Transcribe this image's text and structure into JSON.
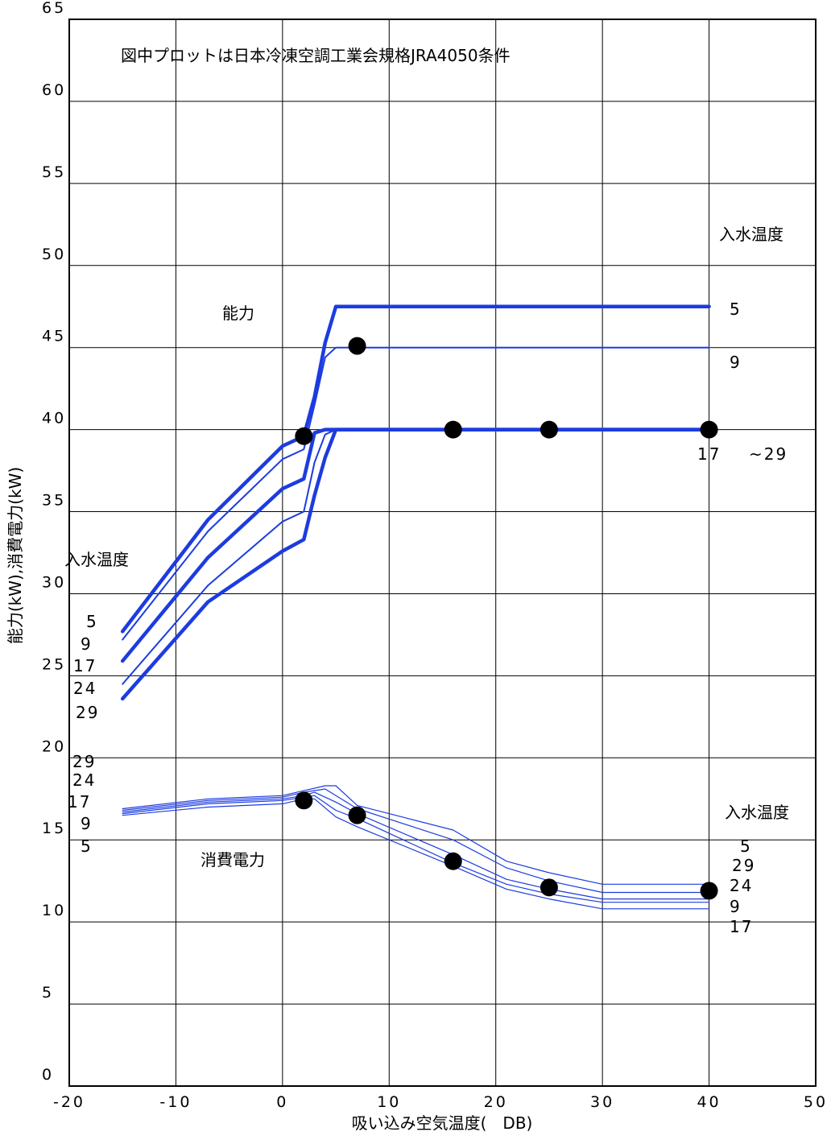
{
  "chart_data": {
    "type": "line",
    "title": "図中プロットは日本冷凍空調工業会規格JRA4050条件",
    "xlabel": "吸い込み空気温度(　DB)",
    "ylabel": "能力(kW),消費電力(kW)",
    "xlim": [
      -20,
      50
    ],
    "ylim": [
      0,
      65
    ],
    "x_ticks": [
      -20,
      -10,
      0,
      10,
      20,
      30,
      40,
      50
    ],
    "y_ticks": [
      0,
      5,
      10,
      15,
      20,
      25,
      30,
      35,
      40,
      45,
      50,
      55,
      60,
      65
    ],
    "grid": true,
    "colors": {
      "line": "#1c3ce0",
      "marker": "#000000",
      "grid": "#000000"
    },
    "capacity_series": [
      {
        "inlet_temp": "5",
        "bold": true,
        "points": [
          [
            -15,
            27.7
          ],
          [
            -7,
            34.5
          ],
          [
            0,
            39.0
          ],
          [
            2,
            39.6
          ],
          [
            3,
            42.0
          ],
          [
            4,
            45.3
          ],
          [
            5,
            47.5
          ],
          [
            40,
            47.5
          ]
        ]
      },
      {
        "inlet_temp": "9",
        "bold": false,
        "points": [
          [
            -15,
            27.2
          ],
          [
            -7,
            33.8
          ],
          [
            0,
            38.2
          ],
          [
            2,
            38.8
          ],
          [
            3,
            41.5
          ],
          [
            4,
            44.4
          ],
          [
            5,
            45.0
          ],
          [
            40,
            45.0
          ]
        ]
      },
      {
        "inlet_temp": "17",
        "bold": true,
        "points": [
          [
            -15,
            25.9
          ],
          [
            -7,
            32.2
          ],
          [
            0,
            36.4
          ],
          [
            2,
            37.0
          ],
          [
            3,
            39.8
          ],
          [
            4,
            40.0
          ],
          [
            40,
            40.0
          ]
        ]
      },
      {
        "inlet_temp": "24",
        "bold": false,
        "points": [
          [
            -15,
            24.5
          ],
          [
            -7,
            30.5
          ],
          [
            0,
            34.4
          ],
          [
            2,
            35.0
          ],
          [
            3,
            38.0
          ],
          [
            4,
            39.7
          ],
          [
            5,
            40.0
          ],
          [
            40,
            40.0
          ]
        ]
      },
      {
        "inlet_temp": "29",
        "bold": true,
        "points": [
          [
            -15,
            23.6
          ],
          [
            -7,
            29.5
          ],
          [
            0,
            32.6
          ],
          [
            2,
            33.3
          ],
          [
            3,
            36.0
          ],
          [
            4,
            38.3
          ],
          [
            5,
            40.0
          ],
          [
            40,
            40.0
          ]
        ]
      }
    ],
    "power_series": [
      {
        "inlet_temp": "29",
        "points": [
          [
            -15,
            16.9
          ],
          [
            -7,
            17.5
          ],
          [
            0,
            17.7
          ],
          [
            2,
            18.0
          ],
          [
            4,
            18.3
          ],
          [
            5,
            18.3
          ],
          [
            7,
            17.1
          ],
          [
            16,
            15.6
          ],
          [
            21,
            13.7
          ],
          [
            25,
            13.0
          ],
          [
            30,
            12.3
          ],
          [
            40,
            12.3
          ]
        ]
      },
      {
        "inlet_temp": "24",
        "points": [
          [
            -15,
            16.8
          ],
          [
            -7,
            17.4
          ],
          [
            0,
            17.6
          ],
          [
            2,
            17.9
          ],
          [
            4,
            18.1
          ],
          [
            7,
            16.9
          ],
          [
            16,
            15.0
          ],
          [
            21,
            13.3
          ],
          [
            25,
            12.5
          ],
          [
            30,
            11.8
          ],
          [
            40,
            11.8
          ]
        ]
      },
      {
        "inlet_temp": "17",
        "points": [
          [
            -15,
            16.7
          ],
          [
            -7,
            17.3
          ],
          [
            0,
            17.5
          ],
          [
            2,
            17.7
          ],
          [
            3,
            17.9
          ],
          [
            5,
            17.3
          ],
          [
            7,
            16.6
          ],
          [
            16,
            14.1
          ],
          [
            21,
            12.6
          ],
          [
            25,
            12.0
          ],
          [
            30,
            11.4
          ],
          [
            40,
            11.4
          ]
        ]
      },
      {
        "inlet_temp": "9",
        "points": [
          [
            -15,
            16.6
          ],
          [
            -7,
            17.2
          ],
          [
            0,
            17.4
          ],
          [
            2,
            17.6
          ],
          [
            3,
            17.7
          ],
          [
            5,
            16.8
          ],
          [
            7,
            16.3
          ],
          [
            16,
            13.6
          ],
          [
            21,
            12.3
          ],
          [
            25,
            11.7
          ],
          [
            30,
            11.2
          ],
          [
            40,
            11.2
          ]
        ]
      },
      {
        "inlet_temp": "5",
        "points": [
          [
            -15,
            16.5
          ],
          [
            -7,
            17.0
          ],
          [
            0,
            17.2
          ],
          [
            2,
            17.5
          ],
          [
            3,
            17.5
          ],
          [
            5,
            16.4
          ],
          [
            7,
            15.8
          ],
          [
            16,
            13.4
          ],
          [
            21,
            12.0
          ],
          [
            25,
            11.4
          ],
          [
            30,
            10.8
          ],
          [
            40,
            10.8
          ]
        ]
      }
    ],
    "capacity_plots": [
      [
        2,
        39.6
      ],
      [
        7,
        45.1
      ],
      [
        16,
        40.0
      ],
      [
        25,
        40.0
      ],
      [
        40,
        40.0
      ]
    ],
    "power_plots": [
      [
        2,
        17.4
      ],
      [
        7,
        16.5
      ],
      [
        16,
        13.7
      ],
      [
        25,
        12.1
      ],
      [
        40,
        11.9
      ]
    ],
    "annotations": {
      "capacity": "能力",
      "power": "消費電力",
      "inlet_temp_right_capacity": "入水温度",
      "inlet_temp_left_capacity": "入水温度",
      "inlet_temp_right_power": "入水温度"
    },
    "series_labels": {
      "cap_right": [
        "5",
        "9",
        "17",
        "~29"
      ],
      "cap_left": [
        "5",
        "9",
        "17",
        "24",
        "29"
      ],
      "pow_left": [
        "29",
        "24",
        "17",
        "9",
        "5"
      ],
      "pow_right": [
        "5",
        "29",
        "24",
        "9",
        "17"
      ]
    }
  }
}
